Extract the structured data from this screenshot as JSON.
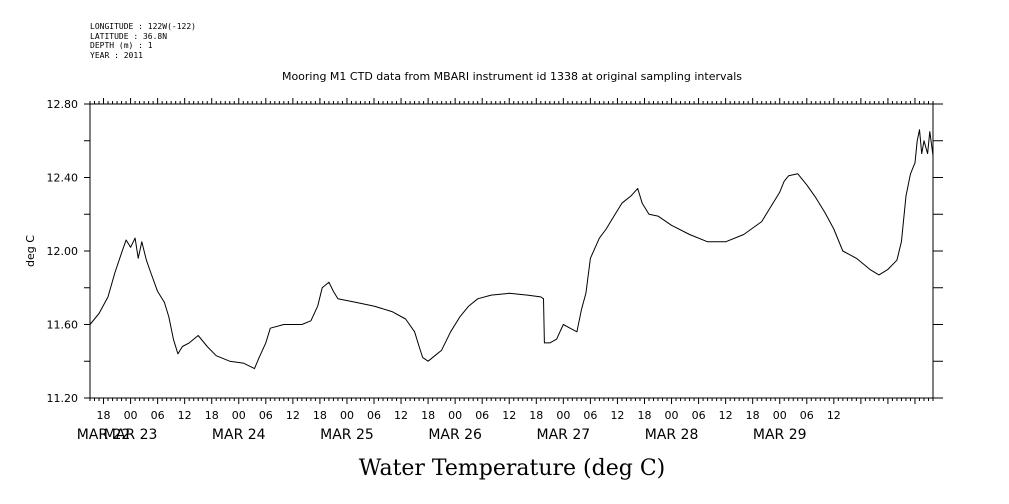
{
  "header": {
    "longitude": "LONGITUDE : 122W(-122)",
    "latitude": "LATITUDE : 36.8N",
    "depth": "DEPTH (m) : 1",
    "year": "YEAR : 2011"
  },
  "chart_data": {
    "type": "line",
    "title": "Mooring M1 CTD data from MBARI instrument id 1338 at original sampling intervals",
    "xlabel": "Water Temperature (deg C)",
    "ylabel": "deg C",
    "ylim": [
      11.2,
      12.8
    ],
    "yticks": [
      "11.20",
      "11.60",
      "12.00",
      "12.40",
      "12.80"
    ],
    "xlim_hours": [
      -9,
      178
    ],
    "hour_labels": [
      "18",
      "00",
      "06",
      "12",
      "18",
      "00",
      "06",
      "12",
      "18",
      "00",
      "06",
      "12",
      "18",
      "00",
      "06",
      "12",
      "18",
      "00",
      "06",
      "12",
      "18",
      "00",
      "06",
      "12",
      "18",
      "00",
      "06",
      "12"
    ],
    "date_labels": [
      "MAR 22",
      "MAR 23",
      "MAR 24",
      "MAR 25",
      "MAR 26",
      "MAR 27",
      "MAR 28",
      "MAR 29"
    ],
    "series": [
      {
        "points": [
          [
            -9,
            11.6
          ],
          [
            -7,
            11.66
          ],
          [
            -5,
            11.75
          ],
          [
            -3.5,
            11.88
          ],
          [
            -2,
            11.99
          ],
          [
            -1,
            12.06
          ],
          [
            0,
            12.02
          ],
          [
            1,
            12.07
          ],
          [
            1.7,
            11.96
          ],
          [
            2.5,
            12.05
          ],
          [
            3.5,
            11.95
          ],
          [
            4.5,
            11.88
          ],
          [
            6,
            11.78
          ],
          [
            7.5,
            11.72
          ],
          [
            8.5,
            11.64
          ],
          [
            9.5,
            11.52
          ],
          [
            10.5,
            11.44
          ],
          [
            11.5,
            11.48
          ],
          [
            13,
            11.5
          ],
          [
            15,
            11.54
          ],
          [
            17,
            11.48
          ],
          [
            19,
            11.43
          ],
          [
            22,
            11.4
          ],
          [
            25,
            11.39
          ],
          [
            27.5,
            11.36
          ],
          [
            28.5,
            11.42
          ],
          [
            30,
            11.5
          ],
          [
            31,
            11.58
          ],
          [
            34,
            11.6
          ],
          [
            38,
            11.6
          ],
          [
            40,
            11.62
          ],
          [
            41.5,
            11.7
          ],
          [
            42.5,
            11.8
          ],
          [
            44,
            11.83
          ],
          [
            45,
            11.78
          ],
          [
            46,
            11.74
          ],
          [
            50,
            11.72
          ],
          [
            54,
            11.7
          ],
          [
            58,
            11.67
          ],
          [
            61,
            11.63
          ],
          [
            63,
            11.56
          ],
          [
            64,
            11.48
          ],
          [
            64.8,
            11.42
          ],
          [
            66,
            11.4
          ],
          [
            67.5,
            11.43
          ],
          [
            69,
            11.46
          ],
          [
            71,
            11.56
          ],
          [
            73,
            11.64
          ],
          [
            75,
            11.7
          ],
          [
            77,
            11.74
          ],
          [
            80,
            11.76
          ],
          [
            84,
            11.77
          ],
          [
            88,
            11.76
          ],
          [
            91,
            11.75
          ],
          [
            91.6,
            11.74
          ],
          [
            91.8,
            11.5
          ],
          [
            93,
            11.5
          ],
          [
            94.5,
            11.52
          ],
          [
            96,
            11.6
          ],
          [
            97.5,
            11.58
          ],
          [
            99,
            11.56
          ],
          [
            100,
            11.68
          ],
          [
            101,
            11.77
          ],
          [
            102,
            11.96
          ],
          [
            104,
            12.07
          ],
          [
            105.5,
            12.12
          ],
          [
            107,
            12.18
          ],
          [
            109,
            12.26
          ],
          [
            111,
            12.3
          ],
          [
            112.5,
            12.34
          ],
          [
            113.5,
            12.26
          ],
          [
            115,
            12.2
          ],
          [
            117,
            12.19
          ],
          [
            120,
            12.14
          ],
          [
            124,
            12.09
          ],
          [
            128,
            12.05
          ],
          [
            132,
            12.05
          ],
          [
            136,
            12.09
          ],
          [
            140,
            12.16
          ],
          [
            142,
            12.24
          ],
          [
            144,
            12.32
          ],
          [
            145,
            12.38
          ],
          [
            146,
            12.41
          ],
          [
            148,
            12.42
          ],
          [
            150,
            12.36
          ],
          [
            152,
            12.29
          ],
          [
            154,
            12.21
          ],
          [
            156,
            12.12
          ],
          [
            158,
            12.0
          ],
          [
            161,
            11.96
          ],
          [
            164,
            11.9
          ],
          [
            166,
            11.87
          ],
          [
            168,
            11.9
          ],
          [
            170,
            11.95
          ],
          [
            171,
            12.05
          ],
          [
            172,
            12.3
          ],
          [
            173,
            12.42
          ],
          [
            174,
            12.48
          ],
          [
            174.5,
            12.6
          ],
          [
            175,
            12.66
          ],
          [
            175.5,
            12.53
          ],
          [
            176,
            12.6
          ],
          [
            176.8,
            12.53
          ],
          [
            177.3,
            12.65
          ],
          [
            178,
            12.52
          ]
        ]
      }
    ]
  }
}
